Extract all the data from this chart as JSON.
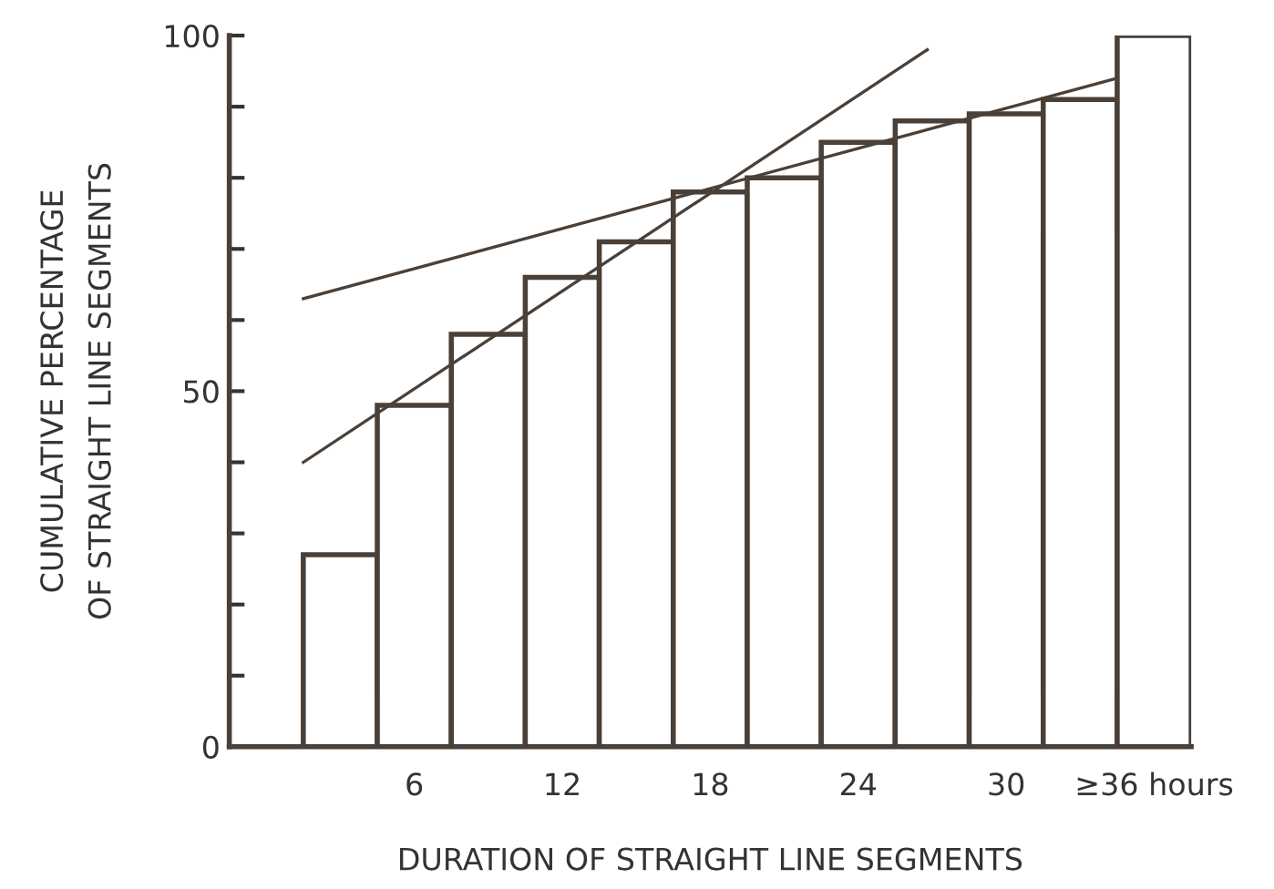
{
  "chart_data": {
    "type": "bar",
    "xlabel": "DURATION OF STRAIGHT LINE SEGMENTS",
    "ylabel": "CUMULATIVE PERCENTAGE\nOF STRAIGHT LINE SEGMENTS",
    "x": [
      3,
      6,
      9,
      12,
      15,
      18,
      21,
      24,
      27,
      30,
      33,
      36
    ],
    "series": [
      {
        "color": "#ffffff",
        "values": [
          27,
          48,
          58,
          66,
          71,
          78,
          80,
          85,
          88,
          89,
          91,
          100
        ]
      },
      {
        "type": "line",
        "color": "#4a4038",
        "x": [
          1.5,
          26.8
        ],
        "values": [
          40,
          98
        ]
      },
      {
        "type": "line",
        "color": "#4a4038",
        "x": [
          1.5,
          34.5
        ],
        "values": [
          63,
          94
        ]
      }
    ],
    "xlim": [
      -1.5,
      37.5
    ],
    "xticks": [
      {
        "value": 6,
        "label": "6"
      },
      {
        "value": 12,
        "label": "12"
      },
      {
        "value": 18,
        "label": "18"
      },
      {
        "value": 24,
        "label": "24"
      },
      {
        "value": 30,
        "label": "30"
      },
      {
        "value": 36,
        "label": "≥36 hours"
      }
    ],
    "ylim": [
      0,
      100
    ],
    "yticks": [
      0,
      {
        "value": 10,
        "label": null
      },
      {
        "value": 20,
        "label": null
      },
      {
        "value": 30,
        "label": null
      },
      {
        "value": 40,
        "label": null
      },
      50,
      {
        "value": 60,
        "label": null
      },
      {
        "value": 70,
        "label": null
      },
      {
        "value": 80,
        "label": null
      },
      {
        "value": 90,
        "label": null
      },
      100
    ],
    "grid": false,
    "line_style": "solid"
  }
}
